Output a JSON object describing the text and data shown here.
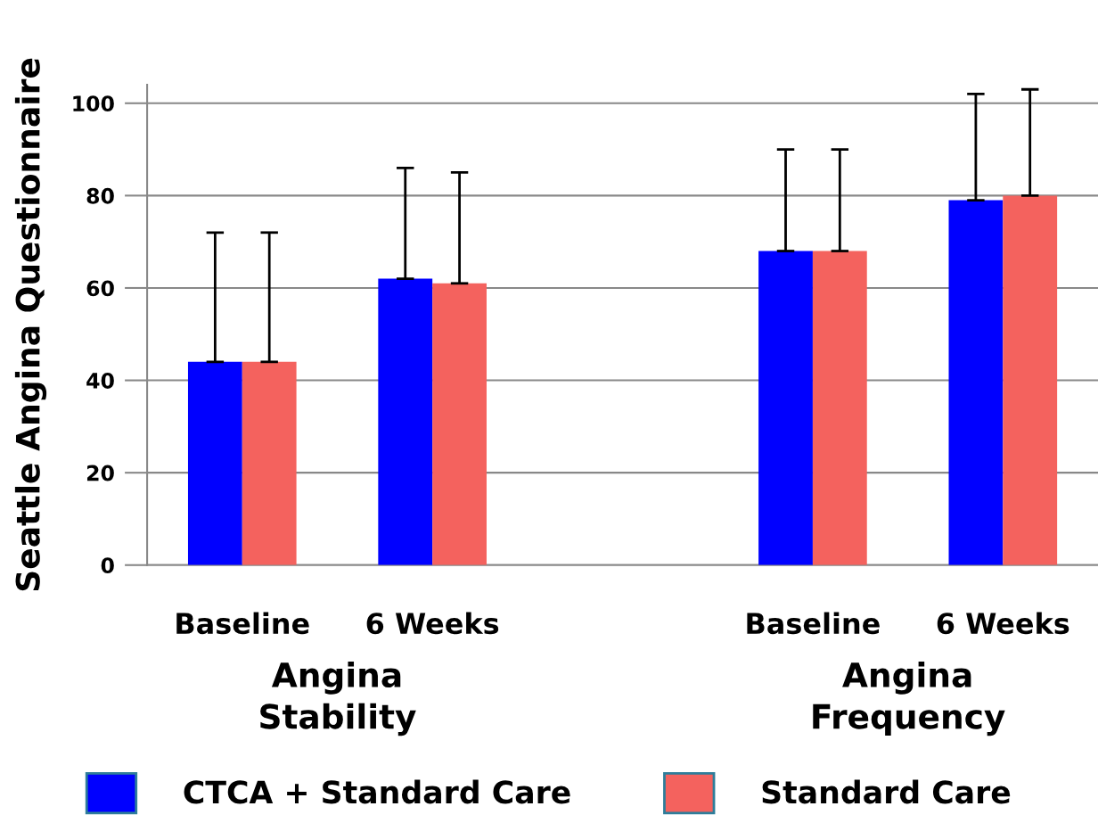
{
  "chart_data": {
    "type": "bar",
    "ylabel": "Seattle Angina Questionnaire",
    "categories": [
      "Baseline",
      "6 Weeks",
      null,
      "Baseline",
      "6 Weeks"
    ],
    "series": [
      {
        "name": "CTCA + Standard Care",
        "color": "#0000ff",
        "values": [
          44,
          62,
          null,
          68,
          79
        ],
        "errors": [
          [
            44,
            72
          ],
          [
            62,
            86
          ],
          null,
          [
            68,
            90
          ],
          [
            79,
            102
          ]
        ]
      },
      {
        "name": "Standard Care",
        "color": "#f4625e",
        "values": [
          44,
          61,
          null,
          68,
          80
        ],
        "errors": [
          [
            44,
            72
          ],
          [
            61,
            85
          ],
          null,
          [
            68,
            90
          ],
          [
            80,
            103
          ]
        ]
      }
    ],
    "annotations": [
      "Angina\nStability",
      "Angina\nFrequency"
    ],
    "ylim": [
      0,
      104
    ],
    "yticks": [
      0,
      20,
      40,
      60,
      80,
      100
    ],
    "grid": "y",
    "legend": "bottom"
  }
}
